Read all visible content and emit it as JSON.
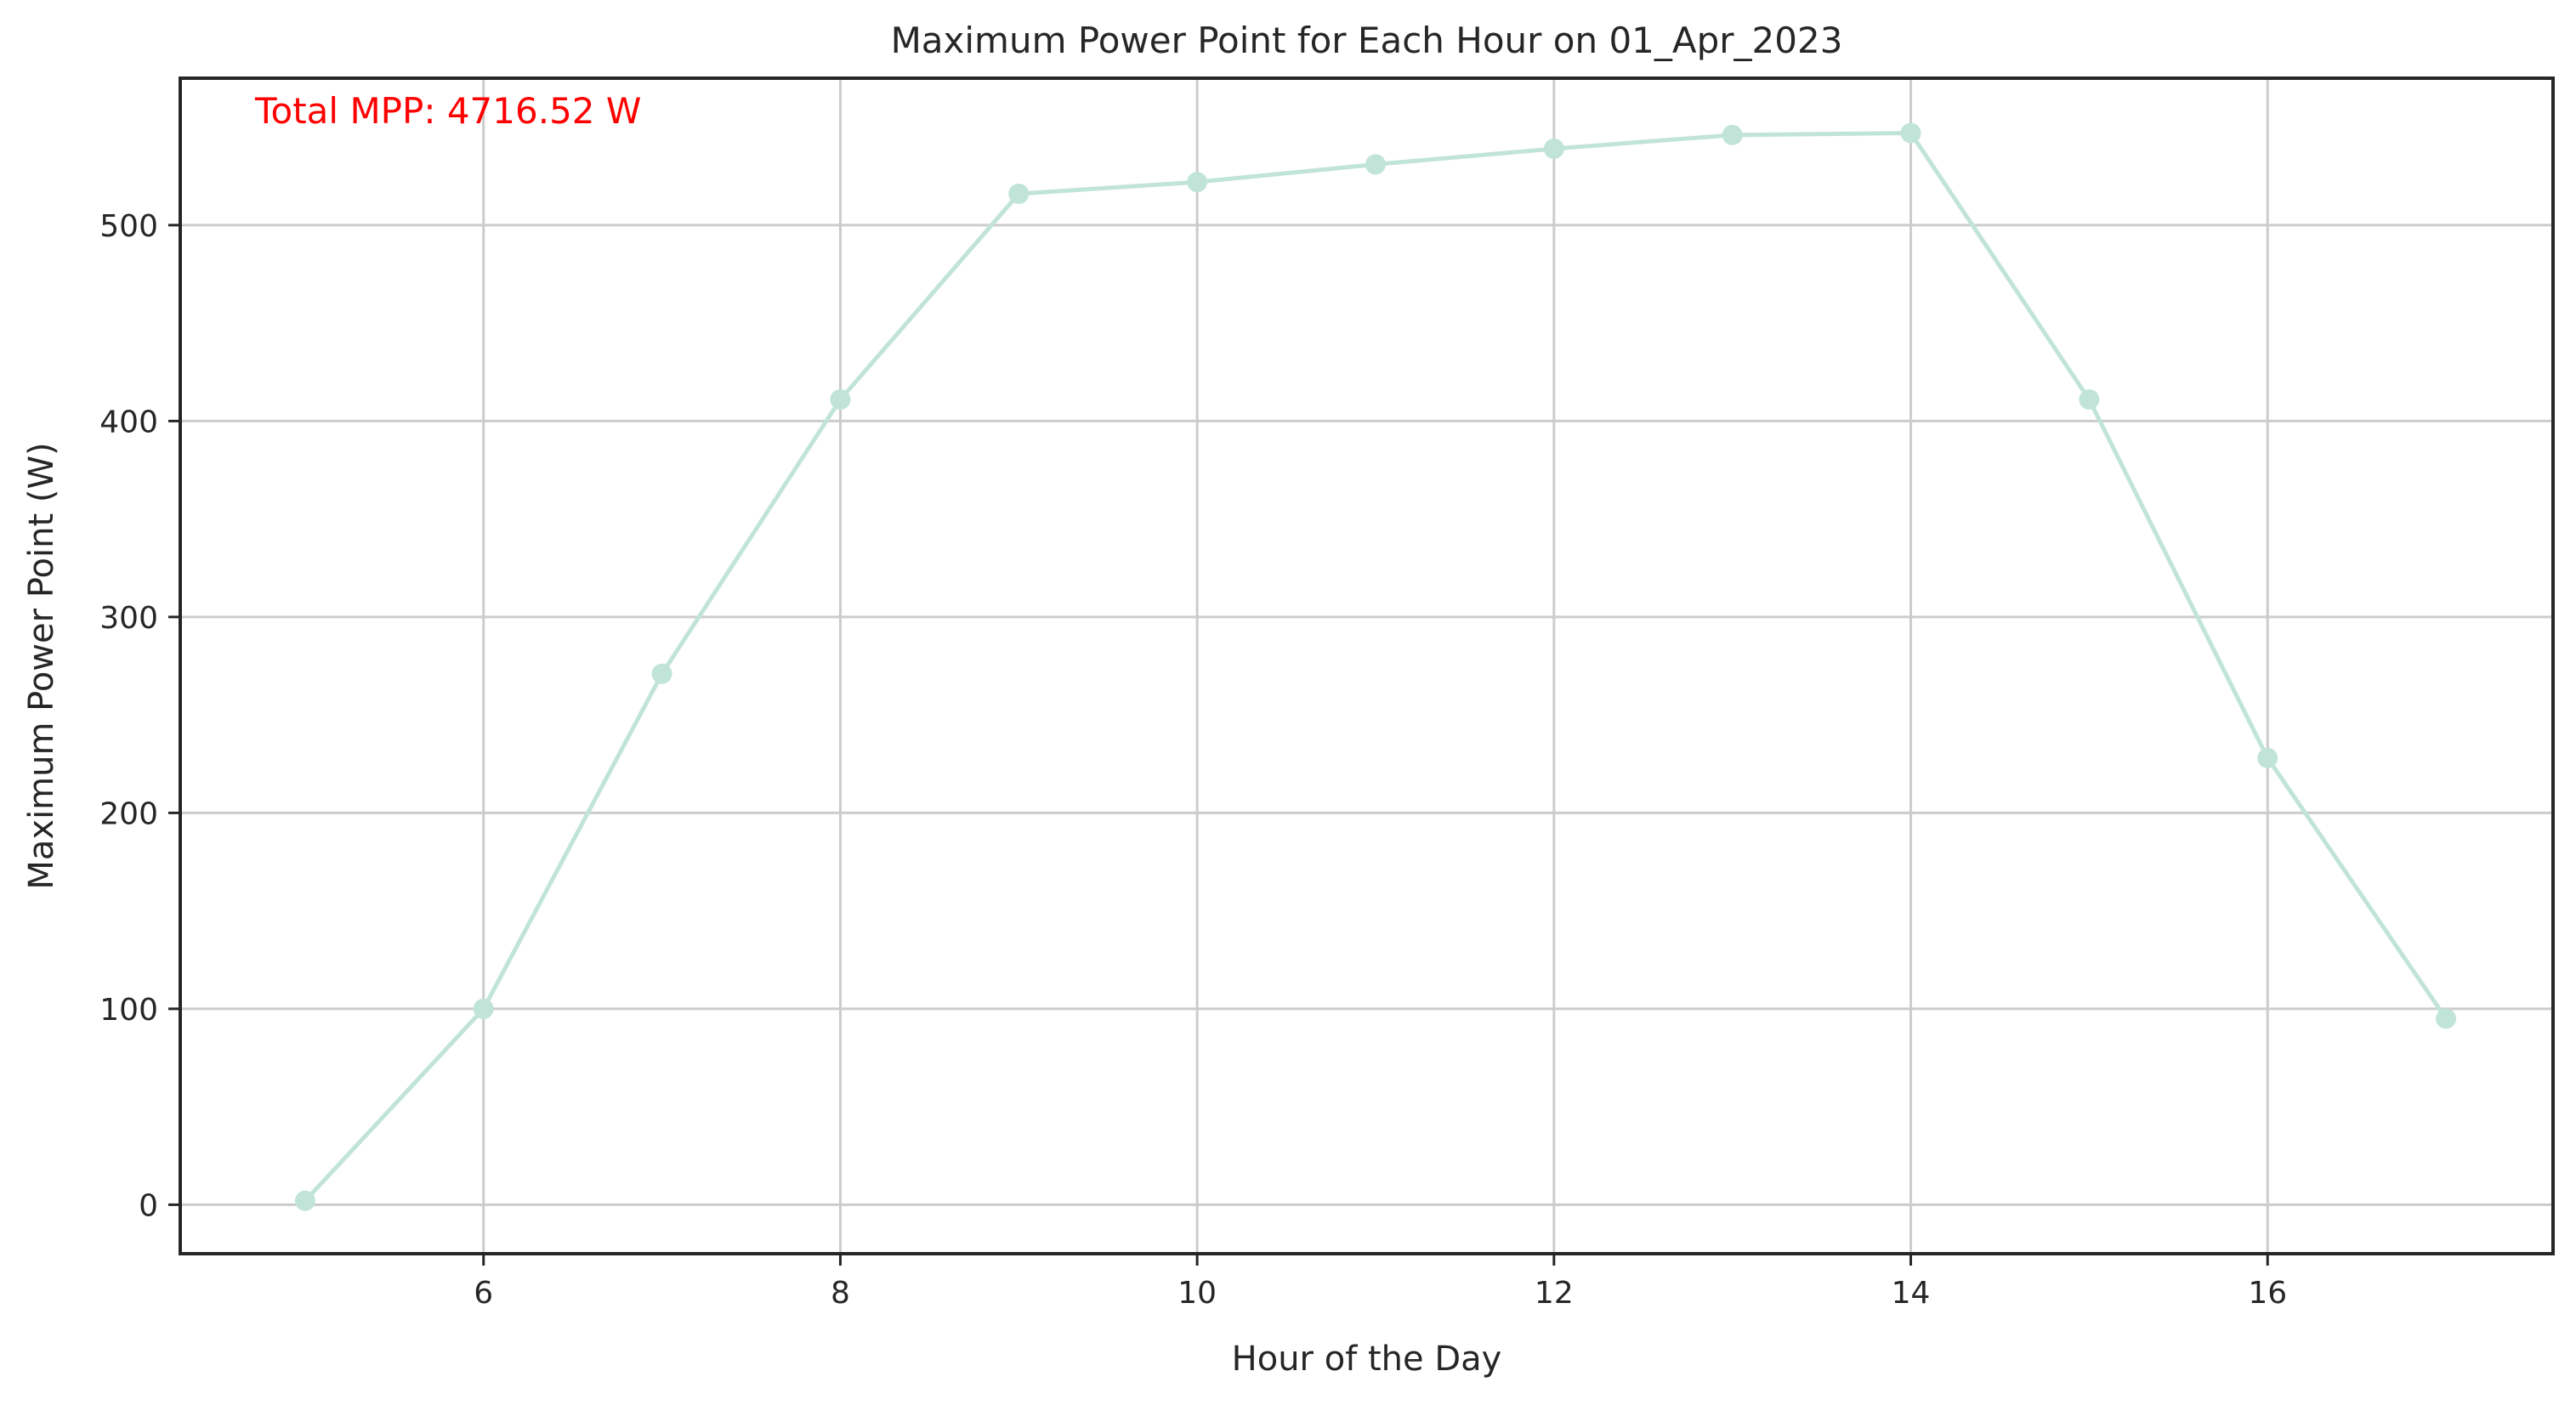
{
  "chart_data": {
    "type": "line",
    "title": "Maximum Power Point for Each Hour on 01_Apr_2023",
    "xlabel": "Hour of the Day",
    "ylabel": "Maximum Power Point (W)",
    "x": [
      5,
      6,
      7,
      8,
      9,
      10,
      11,
      12,
      13,
      14,
      15,
      16,
      17
    ],
    "series": [
      {
        "values": [
          2,
          100,
          271,
          411,
          516,
          522,
          531,
          539,
          546,
          547,
          411,
          228,
          95
        ]
      }
    ],
    "xlim": [
      4.3,
      17.6
    ],
    "ylim": [
      -25,
      575
    ],
    "xticks": [
      6,
      8,
      10,
      12,
      14,
      16
    ],
    "yticks": [
      0,
      100,
      200,
      300,
      400,
      500
    ],
    "grid": true,
    "annotation": "Total MPP: 4716.52 W",
    "colors": {
      "line": "#c1e4d8",
      "annotation": "#ff0000",
      "grid": "#cccccc",
      "axes": "#262626"
    }
  }
}
